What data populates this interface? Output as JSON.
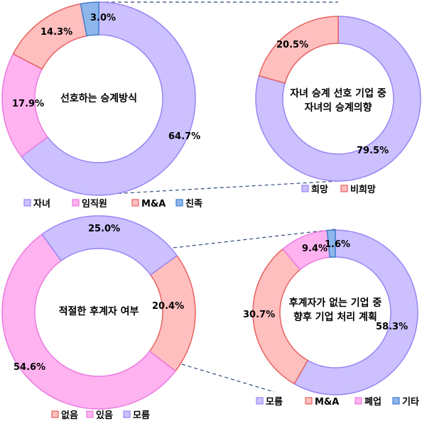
{
  "chart_data": [
    {
      "type": "donut",
      "title": "선호하는 승계방식",
      "categories": [
        "자녀",
        "임직원",
        "M&A",
        "친족"
      ],
      "values": [
        64.7,
        17.9,
        14.3,
        3.0
      ],
      "labels": [
        "64.7%",
        "17.9%",
        "14.3%",
        "3.0%"
      ],
      "colors": [
        "#CCC0FF",
        "#FFB2F0",
        "#FFBFBF",
        "#8FB6EA"
      ],
      "borders": [
        "#9A84F5",
        "#EA7BE0",
        "#E8625F",
        "#3F7FCF"
      ],
      "legend": "bottom"
    },
    {
      "type": "donut",
      "title": "자녀 승계 선호 기업 중 자녀의 승계의향",
      "title_lines": [
        "자녀 승계 선호 기업 중",
        "자녀의 승계의향"
      ],
      "categories": [
        "희망",
        "비희망"
      ],
      "values": [
        79.5,
        20.5
      ],
      "labels": [
        "79.5%",
        "20.5%"
      ],
      "colors": [
        "#CCC0FF",
        "#FFBFBF"
      ],
      "borders": [
        "#9A84F5",
        "#E8625F"
      ],
      "legend": "bottom"
    },
    {
      "type": "donut",
      "title": "적절한 후계자 여부",
      "categories": [
        "없음",
        "있음",
        "모름"
      ],
      "values": [
        20.4,
        54.6,
        25.0
      ],
      "labels": [
        "20.4%",
        "54.6%",
        "25.0%"
      ],
      "colors": [
        "#FFBFBF",
        "#FFB2F0",
        "#CCC0FF"
      ],
      "borders": [
        "#E8625F",
        "#EA7BE0",
        "#9A84F5"
      ],
      "legend": "bottom"
    },
    {
      "type": "donut",
      "title": "후계자가 없는 기업 중 향후 기업 처리 계획",
      "title_lines": [
        "후계자가 없는 기업 중",
        "향후 기업 처리 계획"
      ],
      "categories": [
        "모름",
        "M&A",
        "폐업",
        "기타"
      ],
      "values": [
        58.3,
        30.7,
        9.4,
        1.6
      ],
      "labels": [
        "58.3%",
        "30.7%",
        "9.4%",
        "1.6%"
      ],
      "colors": [
        "#CCC0FF",
        "#FFBFBF",
        "#FFB2F0",
        "#8FB6EA"
      ],
      "borders": [
        "#9A84F5",
        "#E8625F",
        "#EA7BE0",
        "#3F7FCF"
      ],
      "legend": "bottom"
    }
  ]
}
